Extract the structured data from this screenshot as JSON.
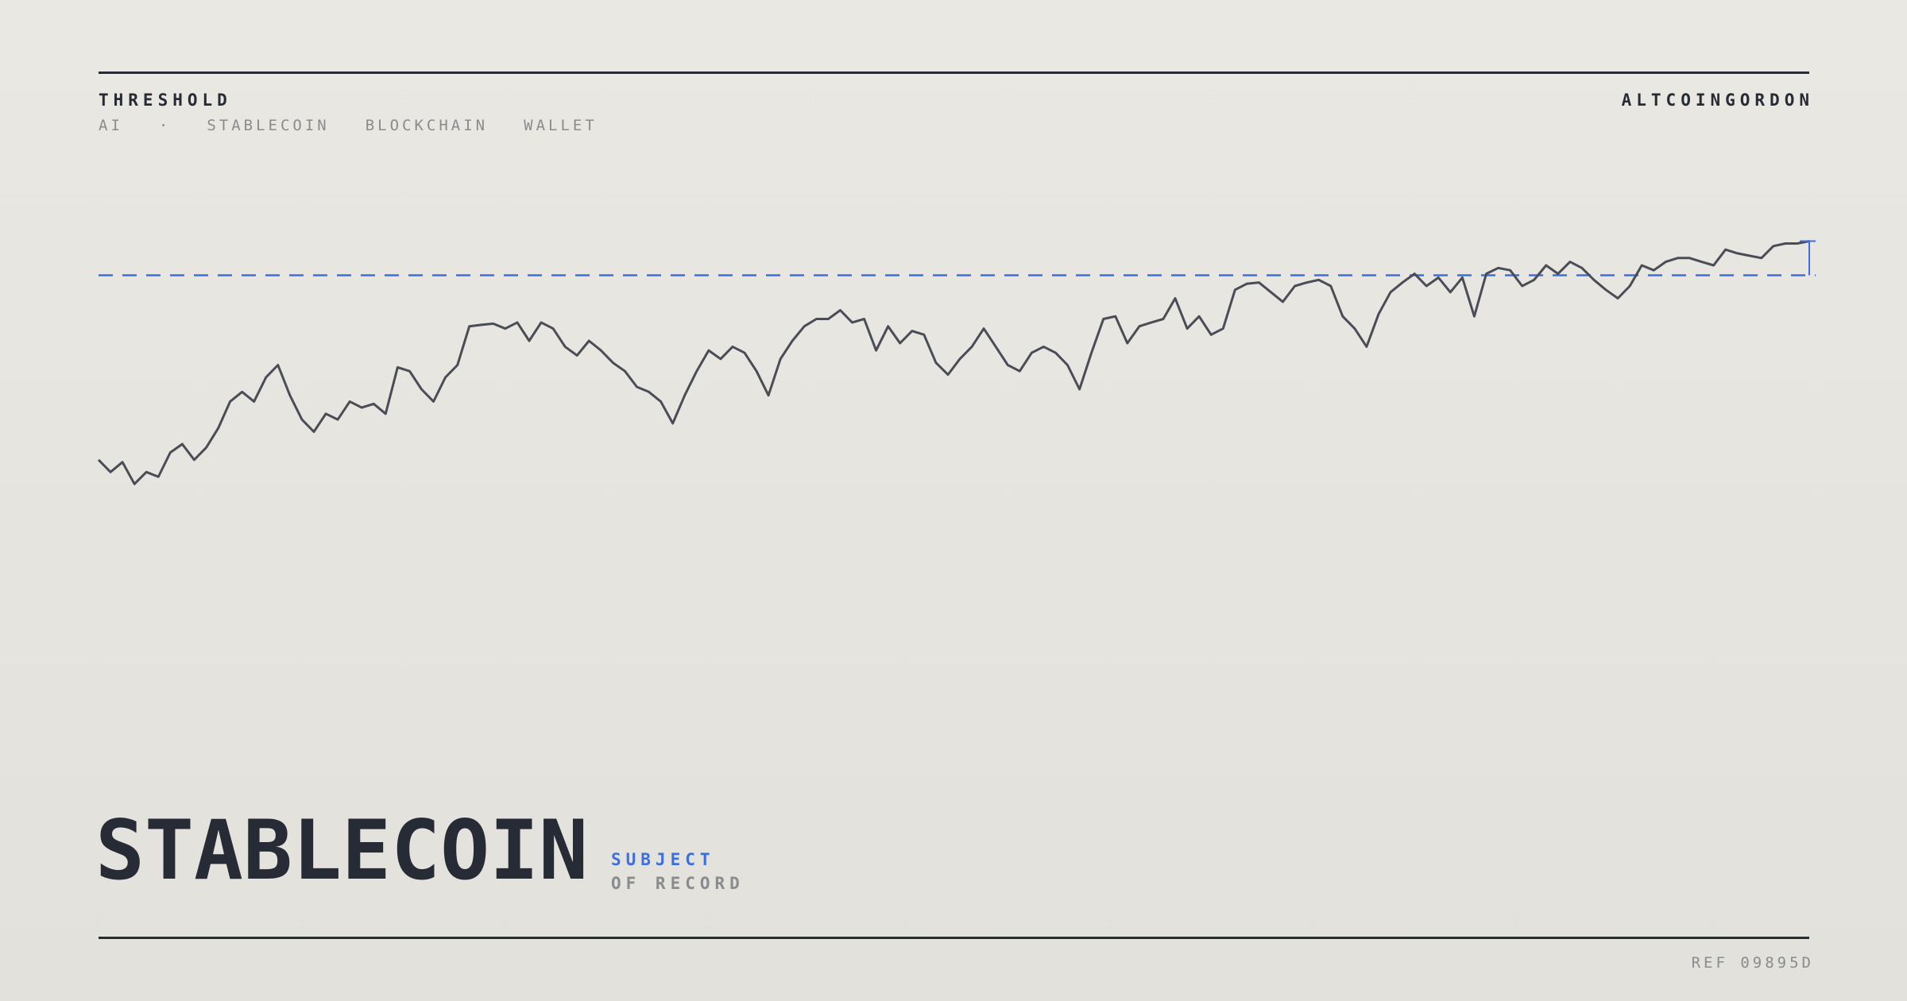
{
  "header": {
    "title": "THRESHOLD",
    "tags": [
      "AI",
      "STABLECOIN",
      "BLOCKCHAIN",
      "WALLET"
    ],
    "separator": "·",
    "brand": "ALTCOINGORDON"
  },
  "chart_data": {
    "type": "line",
    "color": "#4a4d55",
    "threshold": 80.8,
    "threshold_color": "#3b6fe0",
    "ylim": [
      0,
      100
    ],
    "values": [
      17.5,
      13.3,
      16.7,
      9.2,
      13.3,
      11.7,
      20,
      22.9,
      17.5,
      21.7,
      28.3,
      37.5,
      40.8,
      37.5,
      45.8,
      50,
      39.6,
      31.3,
      27.1,
      33.3,
      31.3,
      37.5,
      35.4,
      36.7,
      33.3,
      49.2,
      47.9,
      41.7,
      37.5,
      45.8,
      50,
      63.3,
      63.8,
      64.2,
      62.5,
      64.6,
      58.3,
      64.6,
      62.5,
      56.3,
      53.3,
      58.3,
      55,
      50.8,
      47.9,
      42.5,
      40.8,
      37.5,
      30,
      39.6,
      47.9,
      55,
      52.1,
      56.3,
      54.2,
      47.9,
      39.6,
      52.1,
      58.3,
      63.3,
      65.8,
      65.8,
      68.8,
      64.6,
      65.8,
      55,
      63.3,
      57.5,
      61.7,
      60.4,
      50.8,
      46.7,
      52.1,
      56.3,
      62.5,
      56.3,
      50,
      47.9,
      54.2,
      56.3,
      54.2,
      50,
      41.7,
      54.2,
      65.8,
      66.7,
      57.5,
      63.3,
      64.6,
      65.8,
      72.9,
      62.5,
      66.7,
      60.4,
      62.5,
      75.8,
      77.9,
      78.3,
      75,
      71.7,
      77.1,
      78.3,
      79.2,
      77.1,
      66.7,
      62.5,
      56.3,
      67.5,
      75,
      78.3,
      81.3,
      77.1,
      80,
      75,
      80,
      66.7,
      81.3,
      83.3,
      82.5,
      77.1,
      79.2,
      84.2,
      81.3,
      85.4,
      83.3,
      79.2,
      75.8,
      72.9,
      77.1,
      84.2,
      82.5,
      85.4,
      86.7,
      86.7,
      85.4,
      84.2,
      89.6,
      88.3,
      87.5,
      86.7,
      90.8,
      91.7,
      91.7,
      92.5
    ]
  },
  "footer": {
    "headline": "STABLECOIN",
    "subtitle_accent": "SUBJECT",
    "subtitle": "OF RECORD",
    "ref": "REF 09895D"
  }
}
